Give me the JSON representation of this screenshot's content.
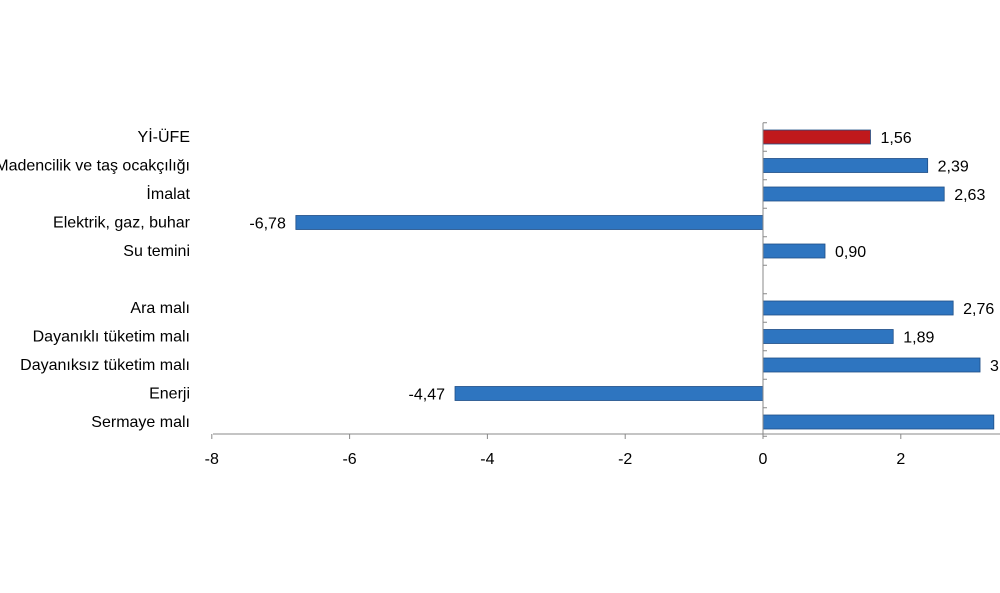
{
  "chart_data": {
    "type": "bar",
    "orientation": "horizontal",
    "title": "",
    "xlabel": "",
    "ylabel": "",
    "xlim": [
      -8,
      3.4
    ],
    "x_ticks": [
      "-8",
      "-6",
      "-4",
      "-2",
      "0",
      "2"
    ],
    "grid": false,
    "legend": "none",
    "bars": [
      {
        "category": "Yİ-ÜFE",
        "value": 1.56,
        "label": "1,56",
        "color": "#c0191c"
      },
      {
        "category": "Madencilik ve taş ocakçılığı",
        "value": 2.39,
        "label": "2,39",
        "color": "#2e75c0"
      },
      {
        "category": "İmalat",
        "value": 2.63,
        "label": "2,63",
        "color": "#2e75c0"
      },
      {
        "category": "Elektrik, gaz, buhar",
        "value": -6.78,
        "label": "-6,78",
        "color": "#2e75c0"
      },
      {
        "category": "Su temini",
        "value": 0.9,
        "label": "0,90",
        "color": "#2e75c0"
      },
      {
        "category": "",
        "value": null,
        "label": "",
        "color": ""
      },
      {
        "category": "Ara malı",
        "value": 2.76,
        "label": "2,76",
        "color": "#2e75c0"
      },
      {
        "category": "Dayanıklı tüketim malı",
        "value": 1.89,
        "label": "1,89",
        "color": "#2e75c0"
      },
      {
        "category": "Dayanıksız tüketim malı",
        "value": 3.15,
        "label": "3",
        "color": "#2e75c0"
      },
      {
        "category": "Enerji",
        "value": -4.47,
        "label": "-4,47",
        "color": "#2e75c0"
      },
      {
        "category": "Sermaye malı",
        "value": 3.35,
        "label": "",
        "color": "#2e75c0"
      }
    ]
  }
}
